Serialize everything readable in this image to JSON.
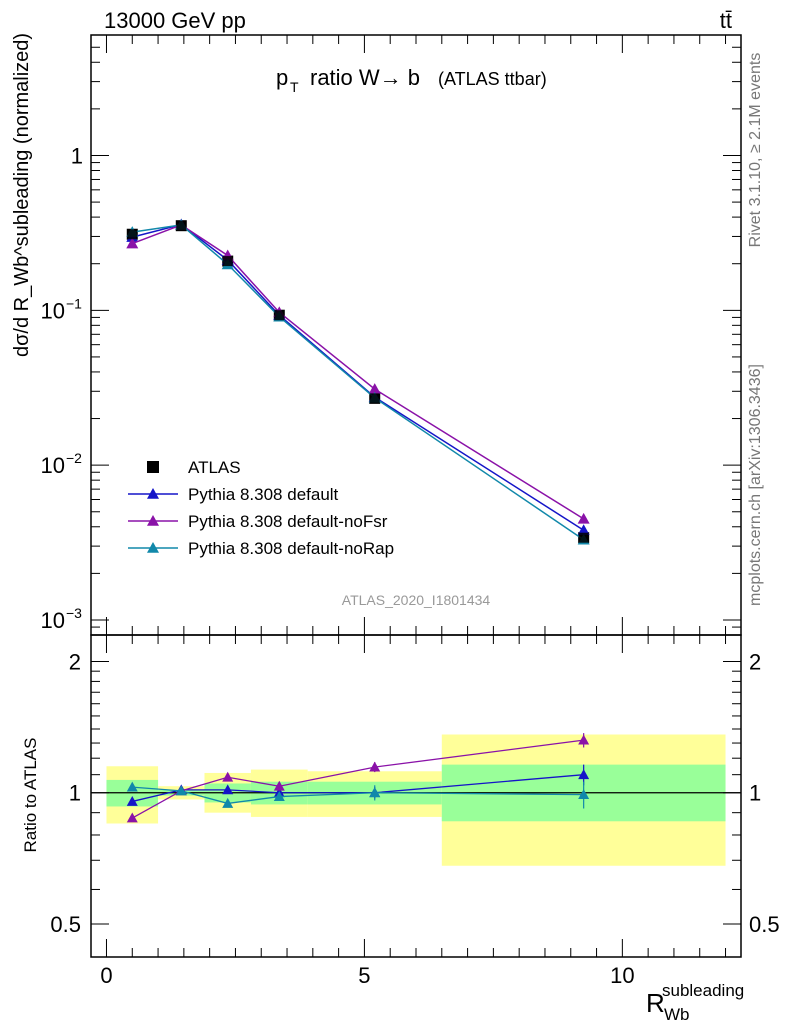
{
  "header": {
    "left": "13000 GeV pp",
    "right": "tt̄"
  },
  "plot_title": {
    "main": "ratio W→ b",
    "p": "p",
    "sub": "T",
    "suffix": "(ATLAS ttbar)"
  },
  "analysis_id": "ATLAS_2020_I1801434",
  "side_labels": {
    "top": "Rivet 3.1.10, ≥ 2.1M events",
    "bottom": "mcplots.cern.ch [arXiv:1306.3436]"
  },
  "y_label_top": "dσ/d R_Wb^subleading (normalized)",
  "y_label_bottom": "Ratio to ATLAS",
  "x_label": {
    "base": "R",
    "sub": "Wb",
    "sup": "subleading"
  },
  "colors": {
    "atlas": "#000000",
    "default": "#1515c8",
    "noFsr": "#8a12a8",
    "noRap": "#1188aa",
    "band_inner": "#99ff99",
    "band_outer": "#ffff99"
  },
  "chart_data": [
    {
      "type": "line",
      "panel": "main",
      "y_scale": "log",
      "xlim": [
        -0.3,
        12.3
      ],
      "ylim": [
        0.0008,
        6
      ],
      "y_ticks": [
        {
          "v": 1,
          "label": "1"
        },
        {
          "v": 0.1,
          "label": "10",
          "exp": "−1"
        },
        {
          "v": 0.01,
          "label": "10",
          "exp": "−2"
        },
        {
          "v": 0.001,
          "label": "10",
          "exp": "−3"
        }
      ],
      "bin_edges": [
        0,
        1,
        1.9,
        2.8,
        3.9,
        6.5,
        12
      ],
      "series": [
        {
          "name": "ATLAS",
          "marker": "square",
          "color_key": "atlas",
          "x": [
            0.5,
            1.45,
            2.35,
            3.35,
            5.2,
            9.25
          ],
          "y": [
            0.31,
            0.352,
            0.208,
            0.093,
            0.027,
            0.0034
          ]
        },
        {
          "name": "Pythia 8.308 default",
          "marker": "triangle",
          "color_key": "default",
          "x": [
            0.5,
            1.45,
            2.35,
            3.35,
            5.2,
            9.25
          ],
          "y": [
            0.297,
            0.358,
            0.211,
            0.093,
            0.0275,
            0.0038
          ]
        },
        {
          "name": "Pythia 8.308 default-noFsr",
          "marker": "triangle",
          "color_key": "noFsr",
          "x": [
            0.5,
            1.45,
            2.35,
            3.35,
            5.2,
            9.25
          ],
          "y": [
            0.27,
            0.356,
            0.226,
            0.097,
            0.031,
            0.0045
          ]
        },
        {
          "name": "Pythia 8.308 default-noRap",
          "marker": "triangle",
          "color_key": "noRap",
          "x": [
            0.5,
            1.45,
            2.35,
            3.35,
            5.2,
            9.25
          ],
          "y": [
            0.32,
            0.356,
            0.198,
            0.091,
            0.0272,
            0.0033
          ]
        }
      ]
    },
    {
      "type": "line",
      "panel": "ratio",
      "xlim": [
        -0.3,
        12.3
      ],
      "ylim": [
        0.42,
        2.3
      ],
      "x_ticks": [
        0,
        5,
        10
      ],
      "y_ticks": [
        0.5,
        1,
        2
      ],
      "bands": [
        {
          "x0": 0,
          "x1": 1,
          "inner": [
            0.93,
            1.07
          ],
          "outer": [
            0.85,
            1.15
          ]
        },
        {
          "x0": 1,
          "x1": 1.9,
          "inner": [
            0.985,
            1.015
          ],
          "outer": [
            0.965,
            1.035
          ]
        },
        {
          "x0": 1.9,
          "x1": 2.8,
          "inner": [
            0.95,
            1.05
          ],
          "outer": [
            0.9,
            1.11
          ]
        },
        {
          "x0": 2.8,
          "x1": 3.9,
          "inner": [
            0.94,
            1.06
          ],
          "outer": [
            0.88,
            1.13
          ]
        },
        {
          "x0": 3.9,
          "x1": 6.5,
          "inner": [
            0.94,
            1.06
          ],
          "outer": [
            0.88,
            1.12
          ]
        },
        {
          "x0": 6.5,
          "x1": 12,
          "inner": [
            0.86,
            1.16
          ],
          "outer": [
            0.68,
            1.36
          ]
        }
      ],
      "series": [
        {
          "name": "Pythia 8.308 default",
          "color_key": "default",
          "x": [
            0.5,
            1.45,
            2.35,
            3.35,
            5.2,
            9.25
          ],
          "y": [
            0.955,
            1.015,
            1.015,
            1.0,
            1.0,
            1.1
          ],
          "err": [
            0.02,
            0.02,
            0.02,
            0.02,
            0.03,
            0.06
          ]
        },
        {
          "name": "Pythia 8.308 default-noFsr",
          "color_key": "noFsr",
          "x": [
            0.5,
            1.45,
            2.35,
            3.35,
            5.2,
            9.25
          ],
          "y": [
            0.875,
            1.01,
            1.085,
            1.035,
            1.145,
            1.32
          ],
          "err": [
            0.01,
            0.02,
            0.02,
            0.02,
            0.03,
            0.05
          ]
        },
        {
          "name": "Pythia 8.308 default-noRap",
          "color_key": "noRap",
          "x": [
            0.5,
            1.45,
            2.35,
            3.35,
            5.2,
            9.25
          ],
          "y": [
            1.03,
            1.01,
            0.945,
            0.98,
            1.0,
            0.99
          ],
          "err": [
            0.01,
            0.02,
            0.02,
            0.02,
            0.04,
            0.07
          ]
        }
      ]
    }
  ]
}
